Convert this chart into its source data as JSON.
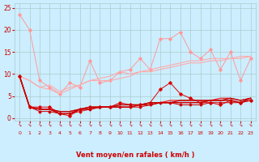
{
  "x": [
    0,
    1,
    2,
    3,
    4,
    5,
    6,
    7,
    8,
    9,
    10,
    11,
    12,
    13,
    14,
    15,
    16,
    17,
    18,
    19,
    20,
    21,
    22,
    23
  ],
  "background_color": "#cceeff",
  "grid_color": "#aacccc",
  "xlabel": "Vent moyen/en rafales ( km/h )",
  "xlabel_color": "#cc0000",
  "tick_color": "#cc0000",
  "ylim": [
    -0.5,
    26
  ],
  "yticks": [
    0,
    5,
    10,
    15,
    20,
    25
  ],
  "series": [
    {
      "y": [
        23.5,
        20.0,
        8.5,
        7.0,
        5.5,
        8.0,
        7.0,
        13.0,
        8.0,
        8.5,
        10.5,
        11.0,
        13.5,
        11.0,
        18.0,
        18.0,
        19.5,
        15.0,
        13.5,
        15.5,
        11.0,
        15.0,
        8.5,
        13.5
      ],
      "color": "#ff9999",
      "marker": "D",
      "linewidth": 0.7,
      "markersize": 1.8
    },
    {
      "y": [
        9.5,
        8.5,
        7.0,
        6.5,
        5.5,
        6.5,
        7.5,
        8.5,
        8.5,
        8.5,
        9.0,
        9.5,
        10.5,
        10.5,
        11.0,
        11.5,
        12.0,
        12.5,
        12.5,
        13.0,
        13.0,
        13.5,
        13.5,
        14.0
      ],
      "color": "#ffaaaa",
      "marker": null,
      "linewidth": 0.8,
      "markersize": 0
    },
    {
      "y": [
        9.5,
        8.5,
        7.0,
        7.5,
        6.0,
        7.0,
        7.5,
        8.5,
        9.0,
        9.5,
        10.5,
        10.0,
        10.5,
        11.0,
        11.5,
        12.0,
        12.5,
        13.0,
        13.0,
        13.5,
        13.5,
        13.5,
        14.0,
        14.0
      ],
      "color": "#ffaaaa",
      "marker": null,
      "linewidth": 0.8,
      "markersize": 0
    },
    {
      "y": [
        9.5,
        2.5,
        2.5,
        2.5,
        1.0,
        0.5,
        2.0,
        2.5,
        2.5,
        2.5,
        3.5,
        3.0,
        3.0,
        3.5,
        6.5,
        8.0,
        5.5,
        4.5,
        3.5,
        3.5,
        3.0,
        4.0,
        3.5,
        4.0
      ],
      "color": "#dd0000",
      "marker": "D",
      "linewidth": 0.7,
      "markersize": 1.8
    },
    {
      "y": [
        9.5,
        2.5,
        2.0,
        2.0,
        1.5,
        1.5,
        2.0,
        2.5,
        2.5,
        2.5,
        3.0,
        3.0,
        3.0,
        3.5,
        3.5,
        4.0,
        4.0,
        4.0,
        4.0,
        4.0,
        4.5,
        4.5,
        4.0,
        4.5
      ],
      "color": "#ee2222",
      "marker": null,
      "linewidth": 0.9,
      "markersize": 0
    },
    {
      "y": [
        9.5,
        2.5,
        2.0,
        2.0,
        1.5,
        1.5,
        2.0,
        2.5,
        2.5,
        2.5,
        3.0,
        3.0,
        3.0,
        3.5,
        3.5,
        3.5,
        4.0,
        4.0,
        4.0,
        4.0,
        4.0,
        4.5,
        4.0,
        4.5
      ],
      "color": "#bb0000",
      "marker": null,
      "linewidth": 0.9,
      "markersize": 0
    },
    {
      "y": [
        9.5,
        2.5,
        2.0,
        2.0,
        1.0,
        1.0,
        2.0,
        2.0,
        2.5,
        2.5,
        2.5,
        2.5,
        3.0,
        3.0,
        3.5,
        3.5,
        3.5,
        3.5,
        3.5,
        4.0,
        4.0,
        4.0,
        3.5,
        4.5
      ],
      "color": "#cc0000",
      "marker": null,
      "linewidth": 1.1,
      "markersize": 0
    },
    {
      "y": [
        9.5,
        2.5,
        1.5,
        1.5,
        1.0,
        1.0,
        1.5,
        2.0,
        2.5,
        2.5,
        2.5,
        2.5,
        2.5,
        3.0,
        3.5,
        3.5,
        3.0,
        3.0,
        3.0,
        3.5,
        3.5,
        3.5,
        3.5,
        4.0
      ],
      "color": "#cc0000",
      "marker": "D",
      "linewidth": 0.7,
      "markersize": 1.5
    }
  ],
  "arrow_color": "#cc2222",
  "figsize": [
    3.2,
    2.0
  ],
  "dpi": 100
}
